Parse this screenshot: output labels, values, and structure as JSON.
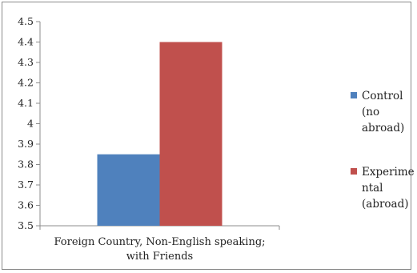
{
  "chart_data": {
    "type": "bar",
    "title": "",
    "xlabel": "",
    "ylabel": "",
    "categories": [
      "Foreign Country, Non-English speaking; with Friends"
    ],
    "category_label_lines": [
      "Foreign Country, Non-English speaking;",
      "with Friends"
    ],
    "series": [
      {
        "name": "Control (no abroad)",
        "legend_lines": [
          "Control",
          "(no",
          "abroad)"
        ],
        "values": [
          3.85
        ],
        "color": "#4F81BD"
      },
      {
        "name": "Experimental (abroad)",
        "legend_lines": [
          "Experime",
          "ntal",
          "(abroad)"
        ],
        "values": [
          4.4
        ],
        "color": "#C0504D"
      }
    ],
    "ylim": [
      3.5,
      4.5
    ],
    "yticks": [
      "3.5",
      "3.6",
      "3.7",
      "3.8",
      "3.9",
      "4",
      "4.1",
      "4.2",
      "4.3",
      "4.4",
      "4.5"
    ],
    "grid": false,
    "legend_position": "right"
  }
}
